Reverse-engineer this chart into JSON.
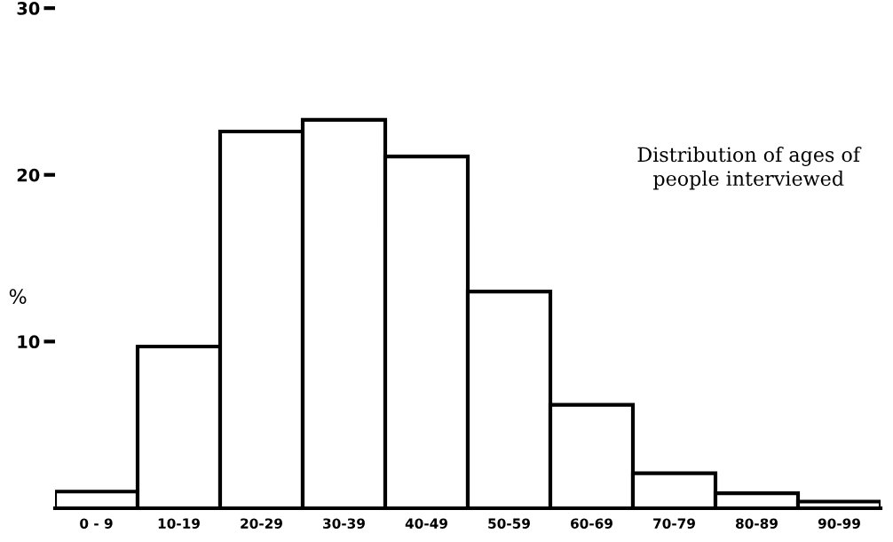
{
  "chart_data": {
    "type": "bar",
    "ylabel": "%",
    "categories": [
      "0 - 9",
      "10-19",
      "20-29",
      "30-39",
      "40-49",
      "50-59",
      "60-69",
      "70-79",
      "80-89",
      "90-99"
    ],
    "values": [
      1.0,
      9.7,
      22.6,
      23.3,
      21.1,
      13.0,
      6.2,
      2.1,
      0.9,
      0.4
    ],
    "color": "#ffffff",
    "ylim": [
      0,
      30
    ],
    "yticks": [
      10,
      20,
      30
    ],
    "grid": false,
    "annotations": [
      "Distribution of ages of\npeople interviewed"
    ]
  }
}
